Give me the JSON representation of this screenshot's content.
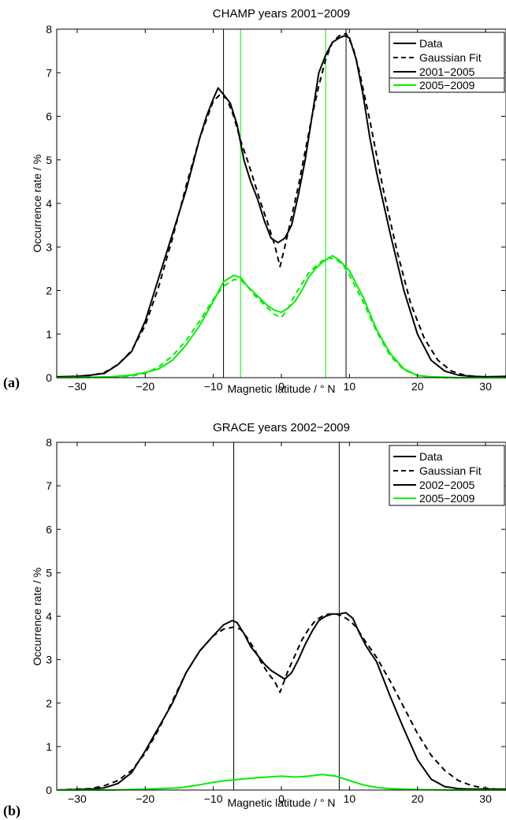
{
  "chart_data": [
    {
      "type": "line",
      "panel_label": "(a)",
      "title": "CHAMP  years 2001−2009",
      "xlabel": "Magnetic latitude / ° N",
      "ylabel": "Occurrence rate / %",
      "xlim": [
        -33,
        33
      ],
      "ylim": [
        0,
        8
      ],
      "xticks": [
        -30,
        -20,
        -10,
        0,
        10,
        20,
        30
      ],
      "xtick_labels": [
        "−30",
        "−20",
        "−10",
        "0",
        "10",
        "20",
        "30"
      ],
      "yticks": [
        0,
        1,
        2,
        3,
        4,
        5,
        6,
        7,
        8
      ],
      "grid": false,
      "legend_position": "top-right",
      "legend": [
        {
          "label": "Data",
          "color": "#000000",
          "dash": "solid"
        },
        {
          "label": "Gaussian Fit",
          "color": "#000000",
          "dash": "dashed"
        },
        {
          "label": "2001−2005",
          "color": "#000000",
          "dash": "solid"
        },
        {
          "label": "2005−2009",
          "color": "#00ee00",
          "dash": "solid"
        }
      ],
      "vlines": [
        {
          "x": -8.5,
          "color": "#000000"
        },
        {
          "x": 9.5,
          "color": "#000000"
        },
        {
          "x": -6,
          "color": "#00ee00"
        },
        {
          "x": 6.5,
          "color": "#00ee00"
        }
      ],
      "series": [
        {
          "color": "#000000",
          "dash": "solid",
          "x": [
            -33,
            -30,
            -28,
            -26,
            -24,
            -22,
            -20,
            -18,
            -16,
            -14,
            -12,
            -11,
            -10,
            -9.3,
            -8.5,
            -7.5,
            -6.5,
            -5.5,
            -4.5,
            -3.5,
            -2.5,
            -1.5,
            -0.5,
            0.5,
            1.5,
            2.5,
            3.5,
            4.5,
            5.5,
            6.5,
            7.5,
            8.5,
            9.3,
            10,
            11,
            12,
            13,
            14,
            16,
            18,
            20,
            22,
            24,
            26,
            28,
            30,
            33
          ],
          "y": [
            0.02,
            0.03,
            0.06,
            0.1,
            0.3,
            0.6,
            1.3,
            2.3,
            3.3,
            4.3,
            5.5,
            6.0,
            6.4,
            6.65,
            6.5,
            6.3,
            5.8,
            5.0,
            4.5,
            4.1,
            3.6,
            3.2,
            3.1,
            3.2,
            3.5,
            4.2,
            5.0,
            6.0,
            7.0,
            7.4,
            7.7,
            7.8,
            7.85,
            7.8,
            7.3,
            6.5,
            5.5,
            4.7,
            3.3,
            2.0,
            1.0,
            0.4,
            0.15,
            0.06,
            0.03,
            0.02,
            0.03
          ]
        },
        {
          "color": "#000000",
          "dash": "dashed",
          "x": [
            -33,
            -30,
            -28,
            -26,
            -24,
            -22,
            -20,
            -18,
            -16,
            -14,
            -12,
            -10,
            -9,
            -8,
            -7,
            -6,
            -5,
            -4,
            -3,
            -2,
            -1,
            -0.2,
            0.5,
            1.5,
            2.5,
            3.5,
            4.5,
            5.5,
            6.5,
            7.5,
            8.5,
            9.5,
            10.5,
            11.5,
            13,
            15,
            17,
            19,
            21,
            23,
            25,
            27,
            30,
            33
          ],
          "y": [
            0.0,
            0.02,
            0.05,
            0.12,
            0.3,
            0.62,
            1.2,
            2.1,
            3.2,
            4.4,
            5.5,
            6.35,
            6.5,
            6.4,
            6.0,
            5.45,
            5.0,
            4.5,
            4.0,
            3.55,
            3.05,
            2.55,
            3.0,
            3.7,
            4.4,
            5.2,
            6.0,
            6.7,
            7.3,
            7.7,
            7.85,
            7.9,
            7.6,
            7.0,
            5.9,
            4.3,
            2.9,
            1.7,
            0.9,
            0.4,
            0.15,
            0.05,
            0.01,
            0.0
          ]
        },
        {
          "color": "#00ee00",
          "dash": "solid",
          "x": [
            -33,
            -25,
            -22,
            -20,
            -18,
            -16,
            -14,
            -12,
            -10,
            -8.5,
            -7,
            -6,
            -5,
            -4,
            -3,
            -2,
            -1,
            0,
            1,
            2,
            3,
            4,
            5,
            6,
            7,
            7.5,
            8.5,
            10,
            12,
            14,
            16,
            18,
            20,
            22,
            24,
            26,
            33
          ],
          "y": [
            0.0,
            0.02,
            0.06,
            0.12,
            0.2,
            0.4,
            0.75,
            1.2,
            1.75,
            2.2,
            2.35,
            2.3,
            2.1,
            1.95,
            1.8,
            1.65,
            1.55,
            1.5,
            1.6,
            1.75,
            2.0,
            2.3,
            2.5,
            2.65,
            2.75,
            2.8,
            2.7,
            2.45,
            1.85,
            1.1,
            0.55,
            0.2,
            0.05,
            0.02,
            0.01,
            0.0,
            0.0
          ]
        },
        {
          "color": "#00ee00",
          "dash": "dashed",
          "x": [
            -33,
            -25,
            -22,
            -20,
            -18,
            -16,
            -14,
            -12,
            -10,
            -8.5,
            -7,
            -6,
            -5,
            -4,
            -3,
            -2,
            -1,
            0,
            1,
            2,
            3,
            4,
            5,
            6,
            7,
            8,
            9,
            10,
            12,
            14,
            16,
            18,
            20,
            22,
            24,
            26,
            33
          ],
          "y": [
            0.0,
            0.01,
            0.04,
            0.1,
            0.25,
            0.5,
            0.85,
            1.3,
            1.8,
            2.1,
            2.25,
            2.25,
            2.1,
            1.9,
            1.75,
            1.6,
            1.45,
            1.38,
            1.6,
            1.9,
            2.15,
            2.4,
            2.55,
            2.68,
            2.75,
            2.72,
            2.6,
            2.35,
            1.75,
            1.05,
            0.5,
            0.18,
            0.05,
            0.01,
            0.0,
            0.0,
            0.0
          ]
        }
      ]
    },
    {
      "type": "line",
      "panel_label": "(b)",
      "title": "GRACE  years 2002−2009",
      "xlabel": "Magnetic latitude / ° N",
      "ylabel": "Occurrence rate / %",
      "xlim": [
        -33,
        33
      ],
      "ylim": [
        0,
        8
      ],
      "xticks": [
        -30,
        -20,
        -10,
        0,
        10,
        20,
        30
      ],
      "xtick_labels": [
        "−30",
        "−20",
        "−10",
        "0",
        "10",
        "20",
        "30"
      ],
      "yticks": [
        0,
        1,
        2,
        3,
        4,
        5,
        6,
        7,
        8
      ],
      "grid": false,
      "legend_position": "top-right",
      "legend": [
        {
          "label": "Data",
          "color": "#000000",
          "dash": "solid"
        },
        {
          "label": "Gaussian Fit",
          "color": "#000000",
          "dash": "dashed"
        },
        {
          "label": "2002−2005",
          "color": "#000000",
          "dash": "solid"
        },
        {
          "label": "2005−2009",
          "color": "#00ee00",
          "dash": "solid"
        }
      ],
      "vlines": [
        {
          "x": -7,
          "color": "#000000"
        },
        {
          "x": 8.5,
          "color": "#000000"
        }
      ],
      "series": [
        {
          "color": "#000000",
          "dash": "solid",
          "x": [
            -33,
            -28,
            -26,
            -24,
            -22,
            -20,
            -18,
            -16,
            -14,
            -12,
            -10,
            -8.5,
            -7.2,
            -6.5,
            -5.5,
            -4.5,
            -3.5,
            -2.5,
            -1.5,
            -0.5,
            0.5,
            1.5,
            2.5,
            3.5,
            4.5,
            5.5,
            6.5,
            7.5,
            8.5,
            9.5,
            10.5,
            11.5,
            12.5,
            14,
            16,
            18,
            20,
            22,
            24,
            26,
            28,
            33
          ],
          "y": [
            0.0,
            0.02,
            0.05,
            0.15,
            0.4,
            0.9,
            1.45,
            2.0,
            2.7,
            3.2,
            3.55,
            3.8,
            3.9,
            3.85,
            3.6,
            3.3,
            3.1,
            2.9,
            2.75,
            2.65,
            2.55,
            2.7,
            3.0,
            3.35,
            3.65,
            3.9,
            4.0,
            4.05,
            4.05,
            4.08,
            3.95,
            3.6,
            3.3,
            2.95,
            2.15,
            1.4,
            0.7,
            0.25,
            0.08,
            0.03,
            0.02,
            0.02
          ]
        },
        {
          "color": "#000000",
          "dash": "dashed",
          "x": [
            -33,
            -28,
            -26,
            -24,
            -22,
            -20,
            -18,
            -16,
            -14,
            -12,
            -10,
            -8.5,
            -7,
            -6,
            -5,
            -4,
            -3,
            -2,
            -1,
            -0.2,
            1,
            2,
            3,
            4,
            5,
            6,
            7,
            8,
            9,
            10,
            11,
            12,
            14,
            16,
            18,
            20,
            22,
            24,
            26,
            28,
            30,
            33
          ],
          "y": [
            0.0,
            0.03,
            0.1,
            0.22,
            0.45,
            0.85,
            1.4,
            2.05,
            2.7,
            3.2,
            3.55,
            3.7,
            3.75,
            3.7,
            3.5,
            3.25,
            2.95,
            2.7,
            2.5,
            2.25,
            2.75,
            3.1,
            3.45,
            3.7,
            3.9,
            4.0,
            4.05,
            4.05,
            4.0,
            3.9,
            3.75,
            3.5,
            3.05,
            2.5,
            1.9,
            1.3,
            0.8,
            0.45,
            0.22,
            0.1,
            0.04,
            0.0
          ]
        },
        {
          "color": "#00ee00",
          "dash": "solid",
          "x": [
            -33,
            -25,
            -20,
            -15,
            -12,
            -10,
            -8,
            -6,
            -4,
            -2,
            0,
            2,
            4,
            6,
            8,
            10,
            12,
            14,
            16,
            18,
            20,
            25,
            33
          ],
          "y": [
            0.0,
            0.0,
            0.02,
            0.05,
            0.12,
            0.18,
            0.22,
            0.25,
            0.28,
            0.3,
            0.32,
            0.3,
            0.32,
            0.36,
            0.32,
            0.22,
            0.12,
            0.06,
            0.03,
            0.02,
            0.01,
            0.0,
            0.0
          ]
        }
      ]
    }
  ]
}
